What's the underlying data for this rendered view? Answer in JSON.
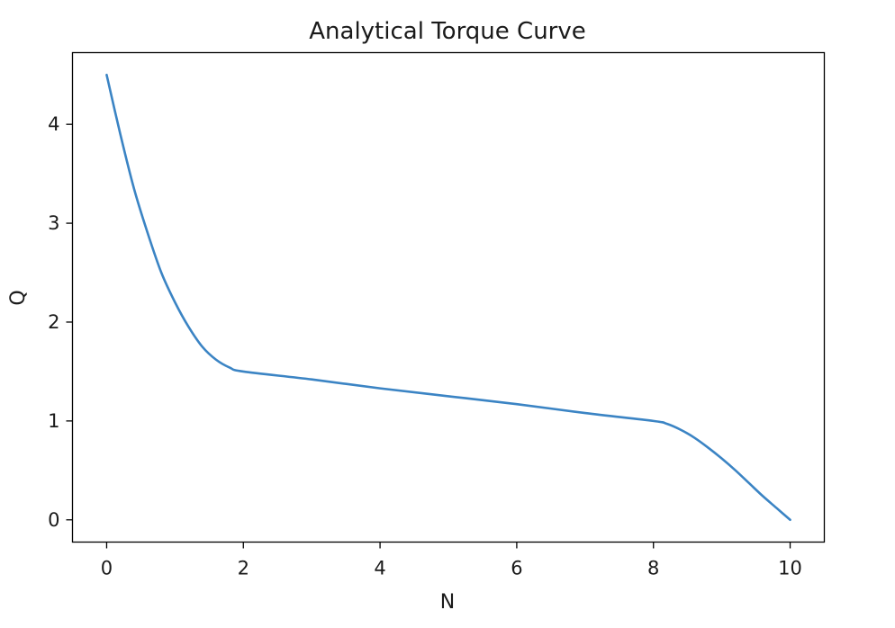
{
  "chart_data": {
    "type": "line",
    "title": "Analytical Torque Curve",
    "xlabel": "N",
    "ylabel": "Q",
    "xlim": [
      -0.5,
      10.5
    ],
    "ylim": [
      -0.225,
      4.725
    ],
    "xticks": [
      0,
      2,
      4,
      6,
      8,
      10
    ],
    "yticks": [
      0,
      1,
      2,
      3,
      4
    ],
    "grid": false,
    "series": [
      {
        "color": "#3b84c4",
        "x": [
          0,
          0.2,
          0.4,
          0.6,
          0.8,
          1.0,
          1.2,
          1.4,
          1.6,
          1.8,
          2.0,
          3.0,
          4.0,
          5.0,
          6.0,
          7.0,
          8.0,
          8.2,
          8.4,
          8.6,
          8.8,
          9.0,
          9.2,
          9.4,
          9.6,
          9.8,
          10.0
        ],
        "y": [
          4.5,
          3.9,
          3.35,
          2.9,
          2.5,
          2.2,
          1.95,
          1.75,
          1.62,
          1.54,
          1.5,
          1.42,
          1.33,
          1.25,
          1.17,
          1.08,
          1.0,
          0.97,
          0.91,
          0.83,
          0.73,
          0.62,
          0.5,
          0.37,
          0.24,
          0.12,
          0.0
        ]
      }
    ]
  }
}
